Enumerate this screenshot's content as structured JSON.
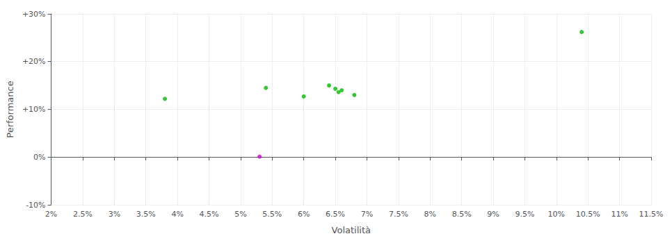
{
  "chart_data": {
    "type": "scatter",
    "xlabel": "Volatilità",
    "ylabel": "Performance",
    "xlim": [
      0.02,
      0.115
    ],
    "ylim": [
      -0.1,
      0.3
    ],
    "xticks": [
      {
        "value": 0.02,
        "label": "2%"
      },
      {
        "value": 0.025,
        "label": "2.5%"
      },
      {
        "value": 0.03,
        "label": "3%"
      },
      {
        "value": 0.035,
        "label": "3.5%"
      },
      {
        "value": 0.04,
        "label": "4%"
      },
      {
        "value": 0.045,
        "label": "4.5%"
      },
      {
        "value": 0.05,
        "label": "5%"
      },
      {
        "value": 0.055,
        "label": "5.5%"
      },
      {
        "value": 0.06,
        "label": "6%"
      },
      {
        "value": 0.065,
        "label": "6.5%"
      },
      {
        "value": 0.07,
        "label": "7%"
      },
      {
        "value": 0.075,
        "label": "7.5%"
      },
      {
        "value": 0.08,
        "label": "8%"
      },
      {
        "value": 0.085,
        "label": "8.5%"
      },
      {
        "value": 0.09,
        "label": "9%"
      },
      {
        "value": 0.095,
        "label": "9.5%"
      },
      {
        "value": 0.1,
        "label": "10%"
      },
      {
        "value": 0.105,
        "label": "10.5%"
      },
      {
        "value": 0.11,
        "label": "11%"
      },
      {
        "value": 0.115,
        "label": "11.5%"
      }
    ],
    "yticks": [
      {
        "value": -0.1,
        "label": "-10%"
      },
      {
        "value": 0.0,
        "label": "0%"
      },
      {
        "value": 0.1,
        "label": "+10%"
      },
      {
        "value": 0.2,
        "label": "+20%"
      },
      {
        "value": 0.3,
        "label": "+30%"
      }
    ],
    "grid": true,
    "series": [
      {
        "color": "#00bb00",
        "x": [
          0.038,
          0.054,
          0.06,
          0.064,
          0.065,
          0.0655,
          0.066,
          0.068,
          0.104
        ],
        "values": [
          0.122,
          0.145,
          0.127,
          0.15,
          0.143,
          0.136,
          0.14,
          0.13,
          0.262
        ]
      },
      {
        "color": "#cc00cc",
        "x": [
          0.053
        ],
        "values": [
          0.001
        ]
      }
    ]
  }
}
